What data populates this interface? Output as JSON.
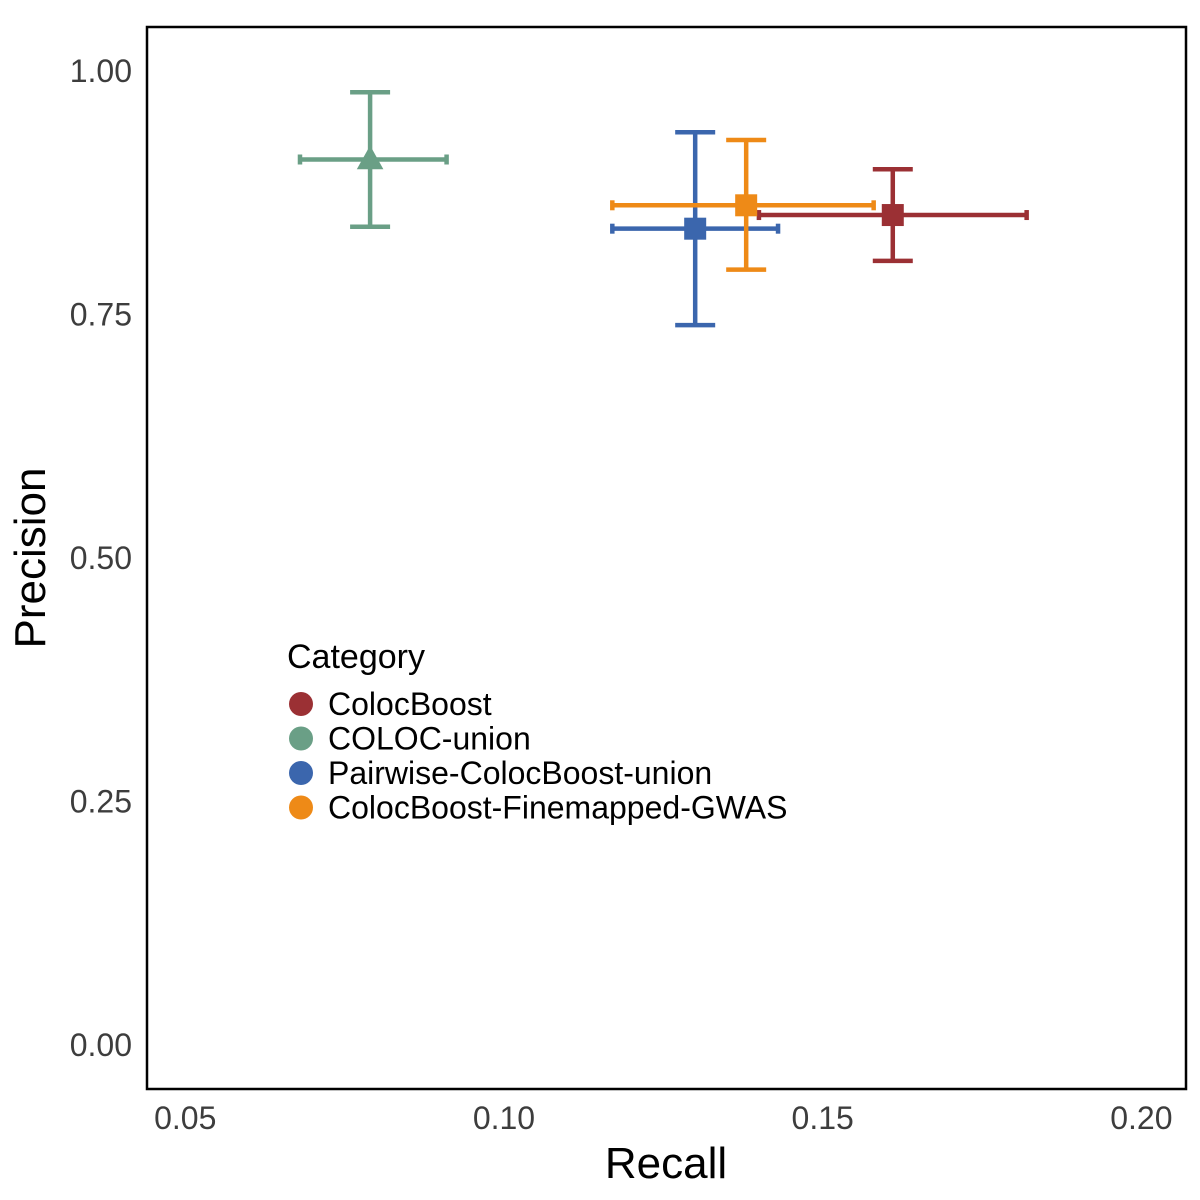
{
  "chart_data": {
    "type": "scatter",
    "title": "",
    "xlabel": "Recall",
    "ylabel": "Precision",
    "xlim": [
      0.044,
      0.207
    ],
    "ylim": [
      -0.045,
      1.045
    ],
    "x_ticks": [
      0.05,
      0.1,
      0.15,
      0.2
    ],
    "x_tick_labels": [
      "0.05",
      "0.10",
      "0.15",
      "0.20"
    ],
    "y_ticks": [
      0.0,
      0.25,
      0.5,
      0.75,
      1.0
    ],
    "y_tick_labels": [
      "0.00",
      "0.25",
      "0.50",
      "0.75",
      "1.00"
    ],
    "grid": false,
    "legend": {
      "title": "Category",
      "placement": "bottom-left-inside"
    },
    "series": [
      {
        "name": "ColocBoost",
        "color": "#9B3034",
        "marker": "square",
        "x": 0.161,
        "y": 0.852,
        "x_err": [
          0.14,
          0.182
        ],
        "y_err": [
          0.805,
          0.899
        ]
      },
      {
        "name": "COLOC-union",
        "color": "#6A9F86",
        "marker": "triangle",
        "x": 0.079,
        "y": 0.909,
        "x_err": [
          0.068,
          0.091
        ],
        "y_err": [
          0.84,
          0.978
        ]
      },
      {
        "name": "Pairwise-ColocBoost-union",
        "color": "#3B66AD",
        "marker": "square",
        "x": 0.13,
        "y": 0.838,
        "x_err": [
          0.117,
          0.143
        ],
        "y_err": [
          0.739,
          0.937
        ]
      },
      {
        "name": "ColocBoost-Finemapped-GWAS",
        "color": "#EE8A17",
        "marker": "square",
        "x": 0.138,
        "y": 0.862,
        "x_err": [
          0.117,
          0.158
        ],
        "y_err": [
          0.796,
          0.929
        ]
      }
    ]
  }
}
